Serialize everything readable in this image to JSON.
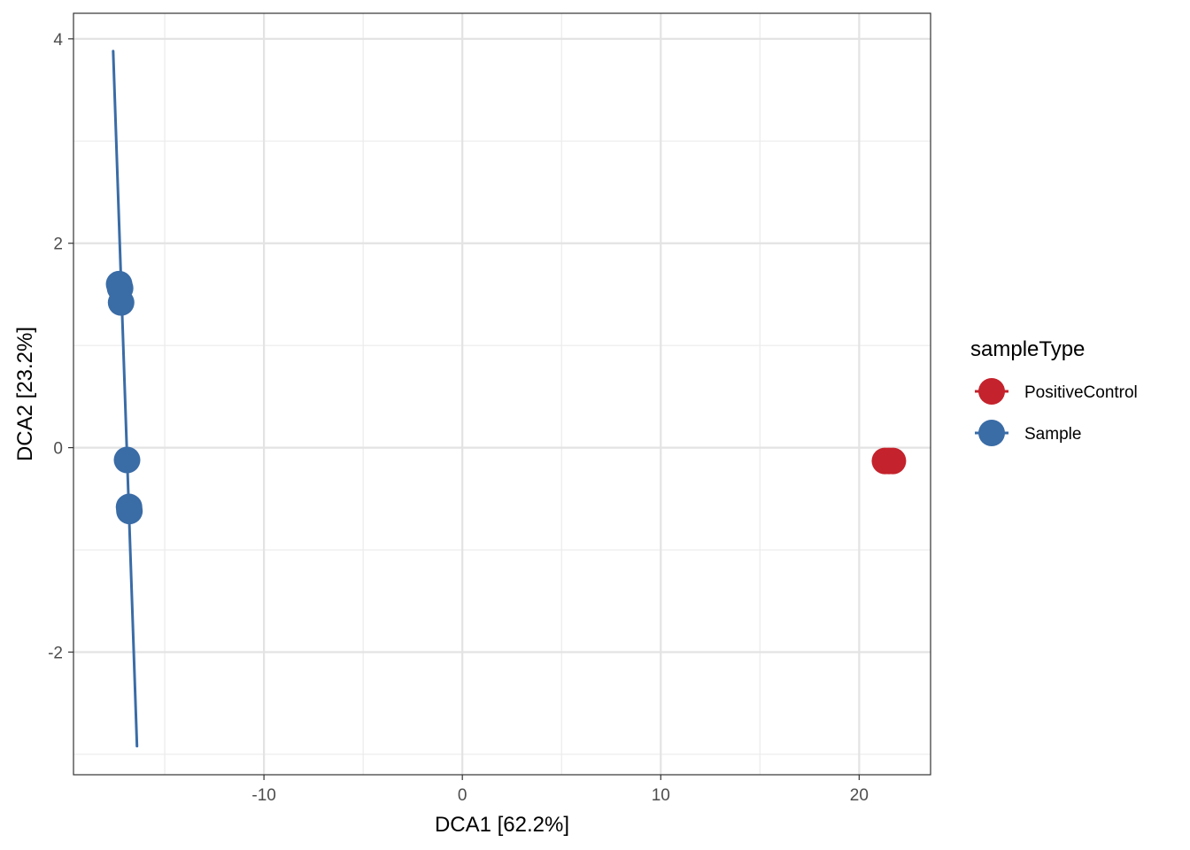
{
  "chart_data": {
    "type": "scatter",
    "title": "",
    "xlabel": "DCA1   [62.2%]",
    "ylabel": "DCA2   [23.2%]",
    "xlim": [
      -19.6,
      23.6
    ],
    "ylim": [
      -3.2,
      4.25
    ],
    "x_ticks": [
      -10,
      0,
      10,
      20
    ],
    "y_ticks": [
      -2,
      0,
      2,
      4
    ],
    "x_tick_labels": [
      "-10",
      "0",
      "10",
      "20"
    ],
    "y_tick_labels": [
      "-2",
      "0",
      "2",
      "4"
    ],
    "grid": true,
    "legend": {
      "title": "sampleType",
      "position": "right",
      "entries": [
        {
          "label": "PositiveControl",
          "color": "#c4222c"
        },
        {
          "label": "Sample",
          "color": "#3a6ca6"
        }
      ]
    },
    "series": [
      {
        "name": "PositiveControl",
        "color": "#c4222c",
        "points": [
          {
            "x": 21.3,
            "y": -0.13
          },
          {
            "x": 21.5,
            "y": -0.13
          },
          {
            "x": 21.7,
            "y": -0.13
          }
        ]
      },
      {
        "name": "Sample",
        "color": "#3a6ca6",
        "points": [
          {
            "x": -17.3,
            "y": 1.6
          },
          {
            "x": -17.25,
            "y": 1.56
          },
          {
            "x": -17.2,
            "y": 1.42
          },
          {
            "x": -16.9,
            "y": -0.12
          },
          {
            "x": -16.8,
            "y": -0.58
          },
          {
            "x": -16.78,
            "y": -0.62
          }
        ],
        "ellipse_segment": {
          "x1": -17.6,
          "y1": 3.88,
          "x2": -16.4,
          "y2": -2.92
        }
      }
    ]
  }
}
